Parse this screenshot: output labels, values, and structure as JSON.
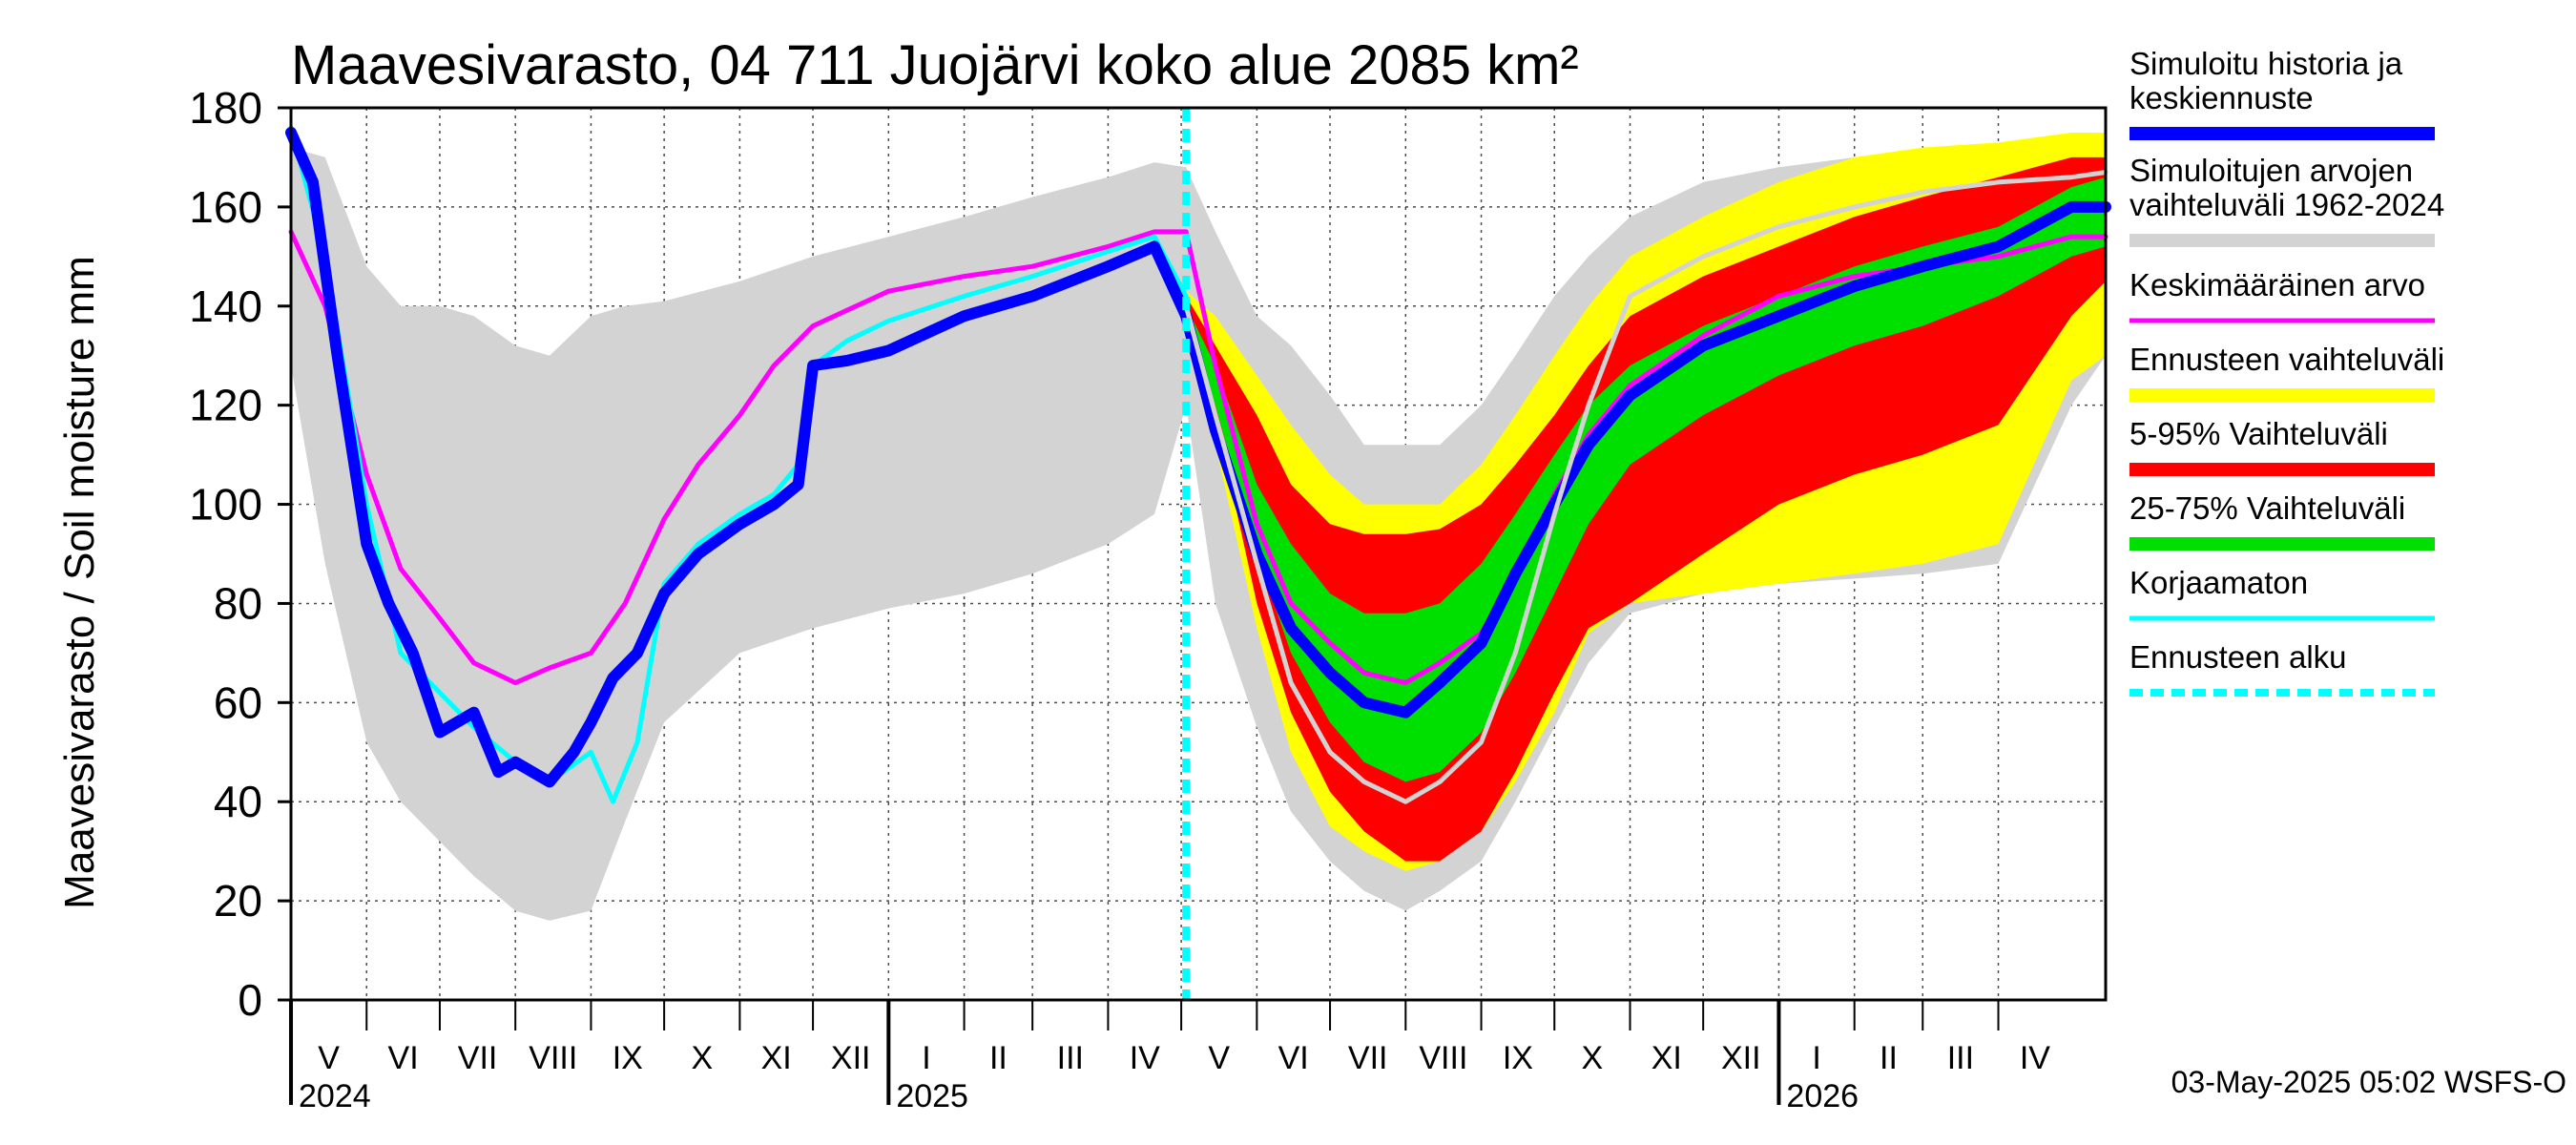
{
  "chart_data": {
    "type": "area",
    "title": "Maavesivarasto, 04 711 Juojärvi koko alue 2085 km²",
    "ylabel": "Maavesivarasto / Soil moisture   mm",
    "ylim": [
      0,
      180
    ],
    "yticks": [
      0,
      20,
      40,
      60,
      80,
      100,
      120,
      140,
      160,
      180
    ],
    "x_start": "2024-05-01",
    "x_end": "2026-05-15",
    "forecast_start": "2025-05-03",
    "grid": true,
    "months": [
      {
        "label": "V",
        "start": "2024-05-01",
        "end": "2024-06-01"
      },
      {
        "label": "VI",
        "start": "2024-06-01",
        "end": "2024-07-01"
      },
      {
        "label": "VII",
        "start": "2024-07-01",
        "end": "2024-08-01"
      },
      {
        "label": "VIII",
        "start": "2024-08-01",
        "end": "2024-09-01"
      },
      {
        "label": "IX",
        "start": "2024-09-01",
        "end": "2024-10-01"
      },
      {
        "label": "X",
        "start": "2024-10-01",
        "end": "2024-11-01"
      },
      {
        "label": "XI",
        "start": "2024-11-01",
        "end": "2024-12-01"
      },
      {
        "label": "XII",
        "start": "2024-12-01",
        "end": "2025-01-01"
      },
      {
        "label": "I",
        "start": "2025-01-01",
        "end": "2025-02-01"
      },
      {
        "label": "II",
        "start": "2025-02-01",
        "end": "2025-03-01"
      },
      {
        "label": "III",
        "start": "2025-03-01",
        "end": "2025-04-01"
      },
      {
        "label": "IV",
        "start": "2025-04-01",
        "end": "2025-05-01"
      },
      {
        "label": "V",
        "start": "2025-05-01",
        "end": "2025-06-01"
      },
      {
        "label": "VI",
        "start": "2025-06-01",
        "end": "2025-07-01"
      },
      {
        "label": "VII",
        "start": "2025-07-01",
        "end": "2025-08-01"
      },
      {
        "label": "VIII",
        "start": "2025-08-01",
        "end": "2025-09-01"
      },
      {
        "label": "IX",
        "start": "2025-09-01",
        "end": "2025-10-01"
      },
      {
        "label": "X",
        "start": "2025-10-01",
        "end": "2025-11-01"
      },
      {
        "label": "XI",
        "start": "2025-11-01",
        "end": "2025-12-01"
      },
      {
        "label": "XII",
        "start": "2025-12-01",
        "end": "2026-01-01"
      },
      {
        "label": "I",
        "start": "2026-01-01",
        "end": "2026-02-01"
      },
      {
        "label": "II",
        "start": "2026-02-01",
        "end": "2026-03-01"
      },
      {
        "label": "III",
        "start": "2026-03-01",
        "end": "2026-04-01"
      },
      {
        "label": "IV",
        "start": "2026-04-01",
        "end": "2026-05-01"
      }
    ],
    "years": [
      {
        "label": "2024",
        "date": "2024-05-01"
      },
      {
        "label": "2025",
        "date": "2025-01-01"
      },
      {
        "label": "2026",
        "date": "2026-01-01"
      }
    ],
    "bands": [
      {
        "name": "Simuloitujen arvojen vaihteluväli 1962-2024",
        "color": "#d3d3d3",
        "x": [
          "2024-05-01",
          "2024-05-15",
          "2024-06-01",
          "2024-06-15",
          "2024-07-01",
          "2024-07-15",
          "2024-08-01",
          "2024-08-15",
          "2024-09-01",
          "2024-09-15",
          "2024-10-01",
          "2024-11-01",
          "2024-12-01",
          "2025-01-01",
          "2025-02-01",
          "2025-03-01",
          "2025-04-01",
          "2025-04-20",
          "2025-05-03",
          "2025-05-15",
          "2025-06-01",
          "2025-06-15",
          "2025-07-01",
          "2025-07-15",
          "2025-08-01",
          "2025-08-15",
          "2025-09-01",
          "2025-09-15",
          "2025-10-01",
          "2025-10-15",
          "2025-11-01",
          "2025-12-01",
          "2026-01-01",
          "2026-02-01",
          "2026-03-01",
          "2026-04-01",
          "2026-05-01",
          "2026-05-15"
        ],
        "upper": [
          172,
          170,
          148,
          140,
          140,
          138,
          132,
          130,
          138,
          140,
          141,
          145,
          150,
          154,
          158,
          162,
          166,
          169,
          168,
          155,
          138,
          132,
          122,
          112,
          112,
          112,
          120,
          130,
          142,
          150,
          158,
          165,
          168,
          170,
          171,
          172,
          173,
          173
        ],
        "lower": [
          128,
          88,
          52,
          40,
          32,
          25,
          18,
          16,
          18,
          36,
          56,
          70,
          75,
          79,
          82,
          86,
          92,
          98,
          120,
          80,
          55,
          38,
          28,
          22,
          18,
          22,
          28,
          40,
          55,
          68,
          78,
          82,
          84,
          85,
          86,
          88,
          120,
          130
        ]
      },
      {
        "name": "Ennusteen vaihteluväli",
        "color": "#ffff00",
        "x": [
          "2025-05-03",
          "2025-05-15",
          "2025-06-01",
          "2025-06-15",
          "2025-07-01",
          "2025-07-15",
          "2025-08-01",
          "2025-08-15",
          "2025-09-01",
          "2025-09-15",
          "2025-10-01",
          "2025-10-15",
          "2025-11-01",
          "2025-12-01",
          "2026-01-01",
          "2026-02-01",
          "2026-03-01",
          "2026-04-01",
          "2026-05-01",
          "2026-05-15"
        ],
        "upper": [
          143,
          138,
          126,
          116,
          106,
          100,
          100,
          100,
          108,
          118,
          130,
          140,
          150,
          158,
          165,
          170,
          172,
          173,
          175,
          175
        ],
        "lower": [
          135,
          112,
          75,
          50,
          35,
          30,
          26,
          28,
          34,
          44,
          58,
          74,
          80,
          82,
          84,
          86,
          88,
          92,
          125,
          130
        ]
      },
      {
        "name": "5-95% Vaihteluväli",
        "color": "#ff0000",
        "x": [
          "2025-05-03",
          "2025-05-15",
          "2025-06-01",
          "2025-06-15",
          "2025-07-01",
          "2025-07-15",
          "2025-08-01",
          "2025-08-15",
          "2025-09-01",
          "2025-09-15",
          "2025-10-01",
          "2025-10-15",
          "2025-11-01",
          "2025-12-01",
          "2026-01-01",
          "2026-02-01",
          "2026-03-01",
          "2026-04-01",
          "2026-05-01",
          "2026-05-15"
        ],
        "upper": [
          142,
          132,
          118,
          104,
          96,
          94,
          94,
          95,
          100,
          108,
          118,
          128,
          138,
          146,
          152,
          158,
          162,
          166,
          170,
          170
        ],
        "lower": [
          136,
          118,
          80,
          58,
          42,
          34,
          28,
          28,
          34,
          46,
          62,
          75,
          80,
          90,
          100,
          106,
          110,
          116,
          138,
          145
        ]
      },
      {
        "name": "25-75% Vaihteluväli",
        "color": "#00e000",
        "x": [
          "2025-05-03",
          "2025-05-15",
          "2025-06-01",
          "2025-06-15",
          "2025-07-01",
          "2025-07-15",
          "2025-08-01",
          "2025-08-15",
          "2025-09-01",
          "2025-09-15",
          "2025-10-01",
          "2025-10-15",
          "2025-11-01",
          "2025-12-01",
          "2026-01-01",
          "2026-02-01",
          "2026-03-01",
          "2026-04-01",
          "2026-05-01",
          "2026-05-15"
        ],
        "upper": [
          140,
          128,
          104,
          92,
          82,
          78,
          78,
          80,
          88,
          98,
          110,
          120,
          128,
          136,
          142,
          148,
          152,
          156,
          164,
          166
        ],
        "lower": [
          136,
          120,
          90,
          70,
          56,
          48,
          44,
          46,
          54,
          66,
          82,
          96,
          108,
          118,
          126,
          132,
          136,
          142,
          150,
          152
        ]
      }
    ],
    "series": [
      {
        "name": "Keskimääräinen arvo",
        "color": "#ff00ff",
        "width": 5,
        "x": [
          "2024-05-01",
          "2024-05-15",
          "2024-06-01",
          "2024-06-15",
          "2024-07-01",
          "2024-07-15",
          "2024-08-01",
          "2024-08-15",
          "2024-09-01",
          "2024-09-15",
          "2024-10-01",
          "2024-10-15",
          "2024-11-01",
          "2024-11-15",
          "2024-12-01",
          "2025-01-01",
          "2025-02-01",
          "2025-03-01",
          "2025-04-01",
          "2025-04-20",
          "2025-05-03",
          "2025-05-15",
          "2025-06-01",
          "2025-06-15",
          "2025-07-01",
          "2025-07-15",
          "2025-08-01",
          "2025-08-15",
          "2025-09-01",
          "2025-09-15",
          "2025-10-01",
          "2025-10-15",
          "2025-11-01",
          "2025-12-01",
          "2026-01-01",
          "2026-02-01",
          "2026-03-01",
          "2026-04-01",
          "2026-05-01",
          "2026-05-15"
        ],
        "y": [
          155,
          140,
          106,
          87,
          77,
          68,
          64,
          67,
          70,
          80,
          97,
          108,
          118,
          128,
          136,
          143,
          146,
          148,
          152,
          155,
          155,
          128,
          96,
          80,
          72,
          66,
          64,
          68,
          74,
          86,
          102,
          114,
          124,
          134,
          142,
          146,
          148,
          150,
          154,
          154
        ]
      },
      {
        "name": "Korjaamaton",
        "color": "#00ffff",
        "width": 5,
        "x": [
          "2024-05-01",
          "2024-05-15",
          "2024-06-01",
          "2024-06-15",
          "2024-07-01",
          "2024-07-15",
          "2024-08-01",
          "2024-08-15",
          "2024-09-01",
          "2024-09-10",
          "2024-09-20",
          "2024-10-01",
          "2024-10-15",
          "2024-11-01",
          "2024-11-15",
          "2024-11-25",
          "2024-12-01",
          "2024-12-15",
          "2025-01-01",
          "2025-02-01",
          "2025-03-01",
          "2025-04-01",
          "2025-04-20",
          "2025-05-03"
        ],
        "y": [
          176,
          150,
          100,
          70,
          62,
          55,
          48,
          44,
          50,
          40,
          52,
          84,
          92,
          98,
          102,
          108,
          128,
          133,
          137,
          142,
          146,
          151,
          154,
          142
        ]
      },
      {
        "name": "Simuloitu historia ja keskiennuste",
        "color": "#0000ff",
        "width": 12,
        "x": [
          "2024-05-01",
          "2024-05-10",
          "2024-05-20",
          "2024-06-01",
          "2024-06-10",
          "2024-06-20",
          "2024-07-01",
          "2024-07-15",
          "2024-07-25",
          "2024-08-01",
          "2024-08-15",
          "2024-08-25",
          "2024-09-01",
          "2024-09-10",
          "2024-09-20",
          "2024-10-01",
          "2024-10-15",
          "2024-11-01",
          "2024-11-15",
          "2024-11-25",
          "2024-12-01",
          "2024-12-15",
          "2025-01-01",
          "2025-02-01",
          "2025-03-01",
          "2025-04-01",
          "2025-04-20",
          "2025-05-03",
          "2025-05-15",
          "2025-06-01",
          "2025-06-15",
          "2025-07-01",
          "2025-07-15",
          "2025-08-01",
          "2025-08-15",
          "2025-09-01",
          "2025-09-15",
          "2025-10-01",
          "2025-10-15",
          "2025-11-01",
          "2025-12-01",
          "2026-01-01",
          "2026-02-01",
          "2026-03-01",
          "2026-04-01",
          "2026-05-01",
          "2026-05-15"
        ],
        "y": [
          175,
          165,
          130,
          92,
          80,
          70,
          54,
          58,
          46,
          48,
          44,
          50,
          56,
          65,
          70,
          82,
          90,
          96,
          100,
          104,
          128,
          129,
          131,
          138,
          142,
          148,
          152,
          138,
          115,
          90,
          75,
          66,
          60,
          58,
          64,
          72,
          86,
          100,
          112,
          122,
          132,
          138,
          144,
          148,
          152,
          160,
          160
        ]
      },
      {
        "name": "",
        "color": "#d3d3d3",
        "width": 5,
        "x": [
          "2025-05-03",
          "2025-05-15",
          "2025-06-01",
          "2025-06-15",
          "2025-07-01",
          "2025-07-15",
          "2025-08-01",
          "2025-08-15",
          "2025-09-01",
          "2025-09-15",
          "2025-10-01",
          "2025-10-15",
          "2025-11-01",
          "2025-12-01",
          "2026-01-01",
          "2026-02-01",
          "2026-03-01",
          "2026-04-01",
          "2026-05-01",
          "2026-05-15"
        ],
        "y": [
          140,
          118,
          88,
          64,
          50,
          44,
          40,
          44,
          52,
          70,
          98,
          120,
          142,
          150,
          156,
          160,
          163,
          165,
          166,
          167
        ]
      }
    ],
    "legend": {
      "placement": "right",
      "items": [
        {
          "label": "Simuloitu historia ja keskiennuste",
          "color": "#0000ff",
          "style": "thick"
        },
        {
          "label": "Simuloitujen arvojen vaihteluväli 1962-2024",
          "color": "#d3d3d3",
          "style": "thick"
        },
        {
          "label": "Keskimääräinen arvo",
          "color": "#ff00ff",
          "style": "line"
        },
        {
          "label": "Ennusteen vaihteluväli",
          "color": "#ffff00",
          "style": "thick"
        },
        {
          "label": "5-95% Vaihteluväli",
          "color": "#ff0000",
          "style": "thick"
        },
        {
          "label": "25-75% Vaihteluväli",
          "color": "#00e000",
          "style": "thick"
        },
        {
          "label": "Korjaamaton",
          "color": "#00ffff",
          "style": "line"
        },
        {
          "label": "Ennusteen alku",
          "color": "#00ffff",
          "style": "dashed"
        }
      ]
    },
    "timestamp": "03-May-2025 05:02 WSFS-O"
  }
}
